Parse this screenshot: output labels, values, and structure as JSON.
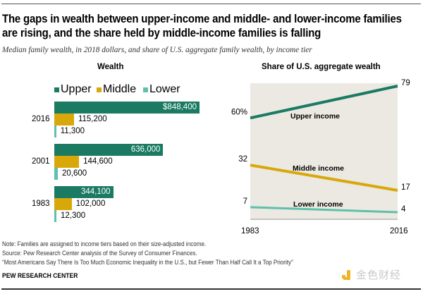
{
  "title_lines": [
    "The gaps in wealth between upper-income and middle- and lower-income families",
    "are rising, and the share held by middle-income families is falling"
  ],
  "subtitle": "Median family wealth, in 2018 dollars, and share of U.S. aggregate family wealth, by income tier",
  "colors": {
    "upper": "#1a7a62",
    "middle": "#d8a80a",
    "lower": "#5fc0ac",
    "panel_bg": "#ebe9e1",
    "baseline": "#b5b5b5"
  },
  "chart_data": [
    {
      "type": "bar",
      "orientation": "horizontal",
      "title": "Wealth",
      "legend": [
        "Upper",
        "Middle",
        "Lower"
      ],
      "legend_position": "top",
      "categories": [
        "2016",
        "2001",
        "1983"
      ],
      "series": [
        {
          "name": "Upper",
          "values": [
            848400,
            636000,
            344100
          ],
          "labels": [
            "$848,400",
            "636,000",
            "344,100"
          ]
        },
        {
          "name": "Middle",
          "values": [
            115200,
            144600,
            102000
          ],
          "labels": [
            "115,200",
            "144,600",
            "102,000"
          ]
        },
        {
          "name": "Lower",
          "values": [
            11300,
            20600,
            12300
          ],
          "labels": [
            "11,300",
            "20,600",
            "12,300"
          ]
        }
      ],
      "xlabel": "",
      "ylabel": "",
      "xlim": [
        0,
        848400
      ],
      "units": "2018 dollars (median family wealth)"
    },
    {
      "type": "line",
      "title": "Share of U.S. aggregate wealth",
      "x": [
        "1983",
        "2016"
      ],
      "series": [
        {
          "name": "Upper income",
          "values": [
            60,
            79
          ],
          "start_label": "60%",
          "end_label": "79"
        },
        {
          "name": "Middle income",
          "values": [
            32,
            17
          ],
          "start_label": "32",
          "end_label": "17"
        },
        {
          "name": "Lower income",
          "values": [
            7,
            4
          ],
          "start_label": "7",
          "end_label": "4"
        }
      ],
      "xlabel": "",
      "ylabel": "",
      "ylim": [
        0,
        80
      ],
      "grid": false,
      "units": "percent"
    }
  ],
  "footer": {
    "note": "Note: Families are assigned to income tiers based on their size-adjusted income.",
    "source": "Source: Pew Research Center analysis of the Survey of Consumer Finances.",
    "report": "“Most Americans Say There Is Too Much Economic Inequality in the U.S., but Fewer Than Half Call It a Top Priority”",
    "brand": "PEW RESEARCH CENTER"
  },
  "watermark": {
    "text": "金色财经",
    "icon": "jinse-logo-icon"
  }
}
